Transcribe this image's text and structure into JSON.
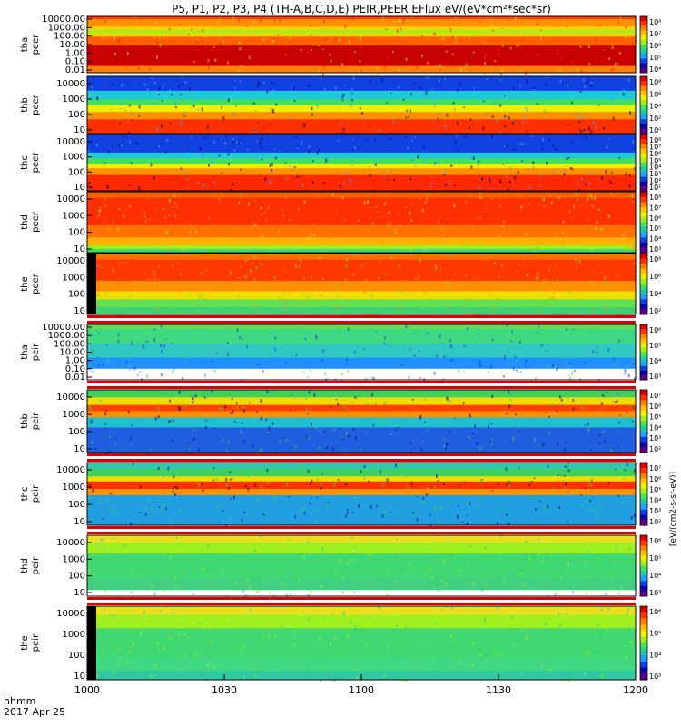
{
  "title": "P5, P1, P2, P3, P4 (TH-A,B,C,D,E) PEIR,PEER EFlux eV/(eV*cm²*sec*sr)",
  "footer": {
    "time_label": "hhmm",
    "date_label": "2017 Apr 25"
  },
  "colorbar_label": "[eV/(cm2-s-sr-eV)]",
  "chart_data": {
    "type": "heatmap",
    "x_ticks": [
      "1000",
      "1030",
      "1100",
      "1130",
      "1200"
    ],
    "x_range": [
      "10:00",
      "12:00"
    ],
    "panels": [
      {
        "probe": "tha",
        "species": "peer",
        "yticks": [
          "10000.00",
          "1000.00",
          "100.00",
          "10.00",
          "1.00",
          "0.10",
          "0.01"
        ],
        "cbar_ticks": [
          "10⁸",
          "10⁷",
          "10⁶",
          "10⁵",
          "10⁴"
        ],
        "colormap": "rainbow",
        "palette": "elec_tha"
      },
      {
        "probe": "thb",
        "species": "peer",
        "yticks": [
          "10000",
          "1000",
          "100",
          "10"
        ],
        "cbar_ticks": [
          "10⁸",
          "10⁶",
          "10⁴",
          "10²",
          "10⁰"
        ],
        "colormap": "rainbow",
        "palette": "elec_thb"
      },
      {
        "probe": "thc",
        "species": "peer",
        "yticks": [
          "10000",
          "1000",
          "100",
          "10"
        ],
        "cbar_ticks": [
          "10⁸",
          "10⁷",
          "10⁶",
          "10⁵",
          "10⁴",
          "10³",
          "10²",
          "10¹"
        ],
        "colormap": "rainbow",
        "palette": "elec_thc"
      },
      {
        "probe": "thd",
        "species": "peer",
        "yticks": [
          "10000",
          "1000",
          "100",
          "10"
        ],
        "cbar_ticks": [
          "10⁸",
          "10⁷",
          "10⁶",
          "10⁵",
          "10⁴",
          "10³"
        ],
        "colormap": "rainbow",
        "palette": "elec_thd"
      },
      {
        "probe": "the",
        "species": "peer",
        "yticks": [
          "10000",
          "1000",
          "100",
          "10"
        ],
        "cbar_ticks": [
          "10⁸",
          "10⁶",
          "10⁴",
          "10²"
        ],
        "colormap": "rainbow",
        "palette": "elec_the"
      },
      {
        "probe": "tha",
        "species": "peir",
        "yticks": [
          "10000.00",
          "1000.00",
          "100.00",
          "10.00",
          "1.00",
          "0.10",
          "0.01"
        ],
        "cbar_ticks": [
          "10⁶",
          "10⁵",
          "10⁴",
          "10³"
        ],
        "colormap": "rainbow",
        "palette": "ion_tha"
      },
      {
        "probe": "thb",
        "species": "peir",
        "yticks": [
          "10000",
          "1000",
          "100",
          "10"
        ],
        "cbar_ticks": [
          "10⁷",
          "10⁶",
          "10⁵",
          "10⁴",
          "10³",
          "10²"
        ],
        "colormap": "rainbow",
        "palette": "ion_thb"
      },
      {
        "probe": "thc",
        "species": "peir",
        "yticks": [
          "10000",
          "1000",
          "100",
          "10"
        ],
        "cbar_ticks": [
          "10⁷",
          "10⁶",
          "10⁵",
          "10⁴",
          "10³",
          "10²"
        ],
        "colormap": "rainbow",
        "palette": "ion_thc"
      },
      {
        "probe": "thd",
        "species": "peir",
        "yticks": [
          "10000",
          "1000",
          "100",
          "10"
        ],
        "cbar_ticks": [
          "10⁶",
          "10⁵",
          "10⁴",
          "10³"
        ],
        "colormap": "rainbow",
        "palette": "ion_thd"
      },
      {
        "probe": "the",
        "species": "peir",
        "yticks": [
          "10000",
          "1000",
          "100",
          "10"
        ],
        "cbar_ticks": [
          "10⁶",
          "10⁵",
          "10⁴",
          "10³"
        ],
        "colormap": "rainbow",
        "palette": "ion_the"
      }
    ]
  }
}
